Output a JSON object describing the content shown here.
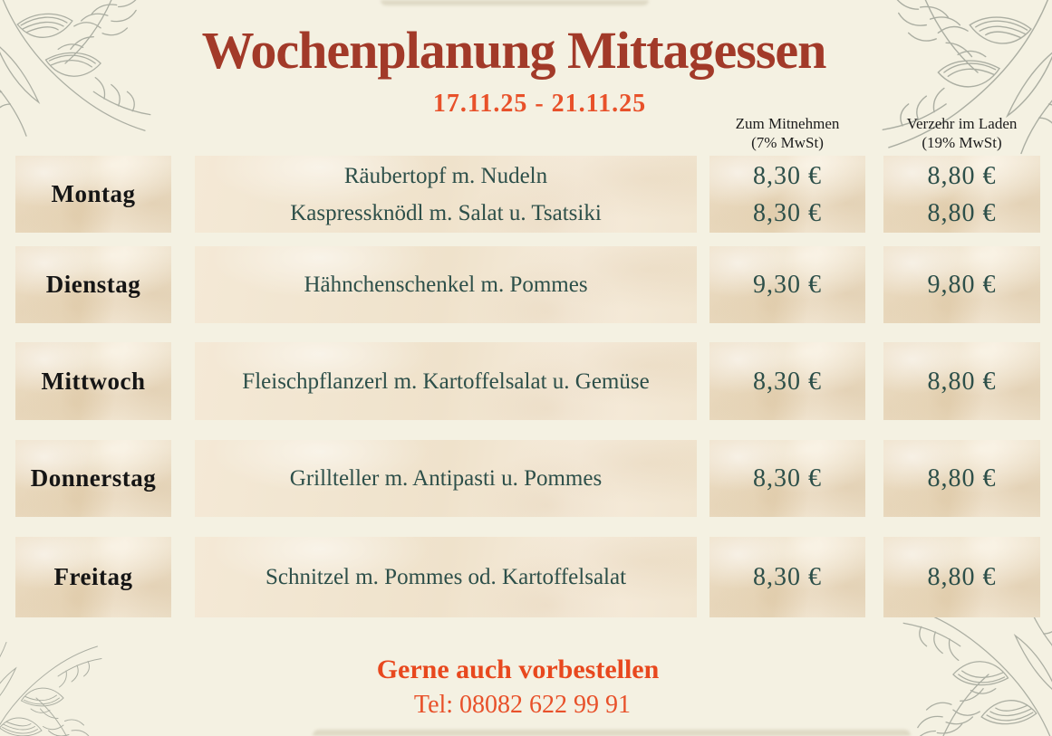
{
  "menu": {
    "title": "Wochenplanung Mittagessen",
    "date_range": "17.11.25 - 21.11.25",
    "columns": [
      {
        "label": "Zum Mitnehmen",
        "vat": "(7% MwSt)"
      },
      {
        "label": "Verzehr im Laden",
        "vat": "(19% MwSt)"
      }
    ],
    "rows": [
      {
        "day": "Montag",
        "dishes": [
          "Räubertopf m. Nudeln",
          "Kaspressknödl m. Salat u. Tsatsiki"
        ],
        "takeaway": [
          "8,30 €",
          "8,30 €"
        ],
        "instore": [
          "8,80 €",
          "8,80 €"
        ]
      },
      {
        "day": "Dienstag",
        "dishes": [
          "Hähnchenschenkel m. Pommes"
        ],
        "takeaway": [
          "9,30 €"
        ],
        "instore": [
          "9,80 €"
        ]
      },
      {
        "day": "Mittwoch",
        "dishes": [
          "Fleischpflanzerl m. Kartoffelsalat u. Gemüse"
        ],
        "takeaway": [
          "8,30 €"
        ],
        "instore": [
          "8,80 €"
        ]
      },
      {
        "day": "Donnerstag",
        "dishes": [
          "Grillteller m. Antipasti u. Pommes"
        ],
        "takeaway": [
          "8,30 €"
        ],
        "instore": [
          "8,80 €"
        ]
      },
      {
        "day": "Freitag",
        "dishes": [
          "Schnitzel m. Pommes od. Kartoffelsalat"
        ],
        "takeaway": [
          "8,30 €"
        ],
        "instore": [
          "8,80 €"
        ]
      }
    ],
    "footer": {
      "preorder": "Gerne auch vorbestellen",
      "phone": "Tel: 08082 622 99 91"
    },
    "colors": {
      "title": "#a23a29",
      "accent_orange": "#e8512a",
      "dish_text": "#2d4f49",
      "day_text": "#151515",
      "background": "#f4f1e2",
      "paper": "#eee0c8"
    }
  }
}
